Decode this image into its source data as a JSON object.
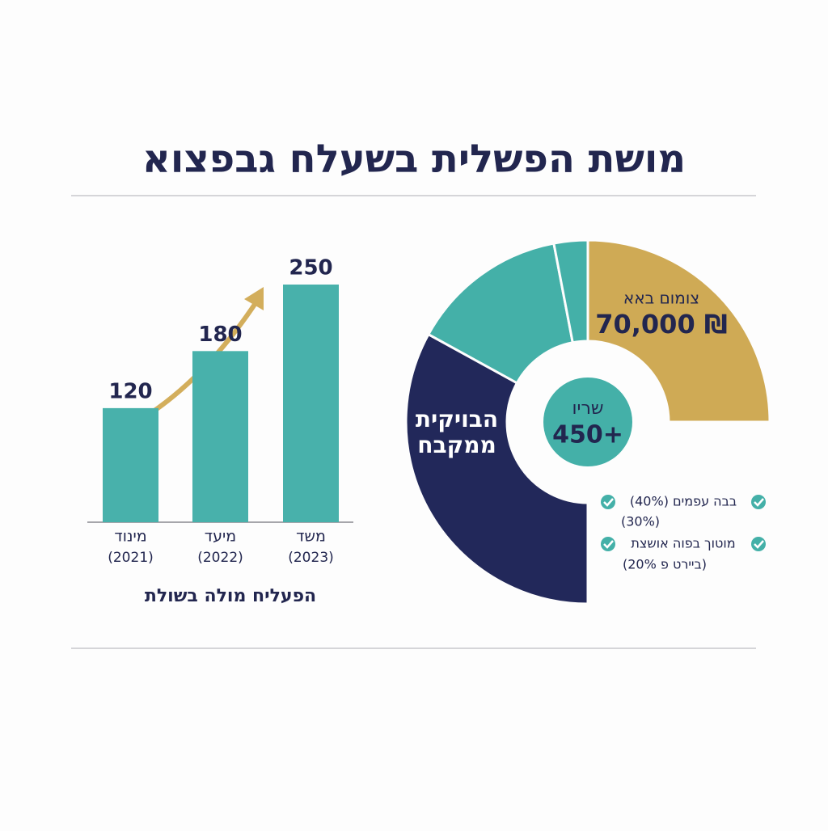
{
  "title": "מושת הפשלית בשעלח גבפצוא",
  "chart_data": [
    {
      "type": "bar",
      "categories": [
        [
          "מינוד",
          "(2021)"
        ],
        [
          "מיעד",
          "(2022)"
        ],
        [
          "משד",
          "(2023)"
        ]
      ],
      "values": [
        120,
        180,
        250
      ],
      "color": "#48b1ab",
      "caption": "הפעליח מולה בשולת"
    },
    {
      "type": "donut",
      "values": [
        33,
        14,
        3,
        25
      ],
      "colors": [
        "#22285a",
        "#44b0a8",
        "#44b0a8",
        "#cfaa55"
      ],
      "segment_labels": [
        [
          "הבויקית",
          "ממקבח"
        ],
        null,
        null,
        [
          "צומום באא",
          "70,000 ₪"
        ]
      ],
      "center_label": [
        "שריו",
        "450+"
      ],
      "legend": [
        [
          "בבה עפמים (40%)",
          "(30%)"
        ],
        [
          "מוטוך בפוה אושצת",
          "(ביירט פ 20%)"
        ]
      ]
    }
  ]
}
